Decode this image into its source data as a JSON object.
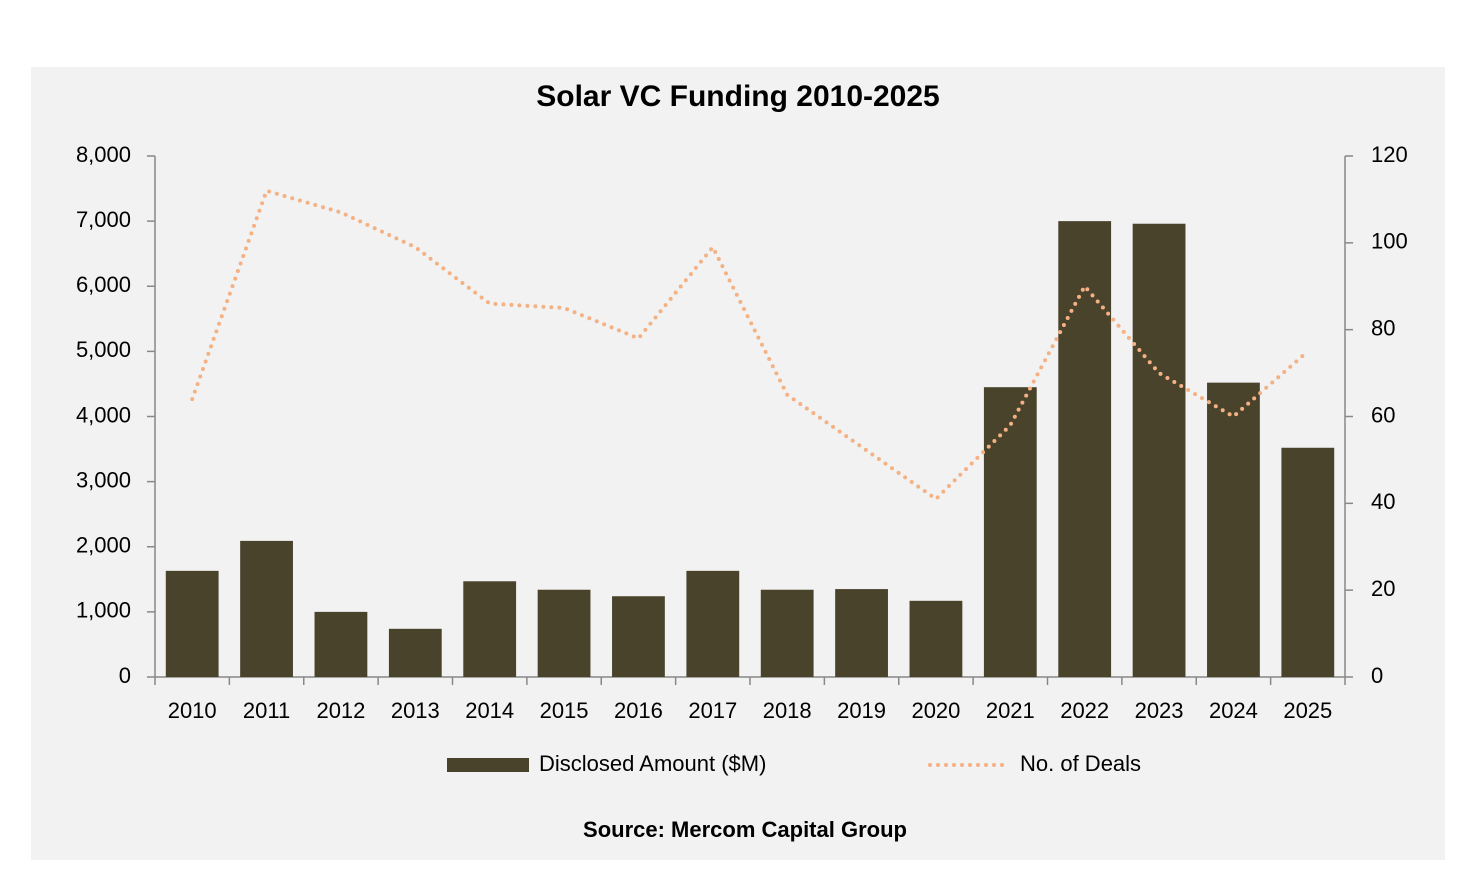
{
  "chart_data": {
    "type": "bar_line",
    "title": "Solar VC Funding 2010-2025",
    "source": "Source: Mercom Capital Group",
    "categories": [
      "2010",
      "2011",
      "2012",
      "2013",
      "2014",
      "2015",
      "2016",
      "2017",
      "2018",
      "2019",
      "2020",
      "2021",
      "2022",
      "2023",
      "2024",
      "2025"
    ],
    "series": [
      {
        "name": "Disclosed Amount ($M)",
        "type": "bar",
        "color": "#4a432c",
        "values": [
          1630,
          2090,
          1000,
          740,
          1470,
          1340,
          1240,
          1630,
          1340,
          1350,
          1170,
          4450,
          7000,
          6960,
          4520,
          3520
        ]
      },
      {
        "name": "No. of Deals",
        "type": "line",
        "axis": "y2",
        "color": "#f4b183",
        "dotted": true,
        "values": [
          64,
          112,
          107,
          99,
          86,
          85,
          78,
          99,
          65,
          53,
          41,
          58,
          90,
          70,
          60,
          75
        ]
      }
    ],
    "ylim": [
      0,
      8000
    ],
    "yticks": [
      0,
      {
        "value": 1000,
        "label": "1,000"
      },
      {
        "value": 2000,
        "label": "2,000"
      },
      {
        "value": 3000,
        "label": "3,000"
      },
      {
        "value": 4000,
        "label": "4,000"
      },
      {
        "value": 5000,
        "label": "5,000"
      },
      {
        "value": 6000,
        "label": "6,000"
      },
      {
        "value": 7000,
        "label": "7,000"
      },
      {
        "value": 8000,
        "label": "8,000"
      }
    ],
    "y2lim": [
      0,
      120
    ],
    "y2ticks": [
      0,
      20,
      40,
      60,
      80,
      100,
      120
    ],
    "grid": false,
    "legend": "bottom"
  }
}
